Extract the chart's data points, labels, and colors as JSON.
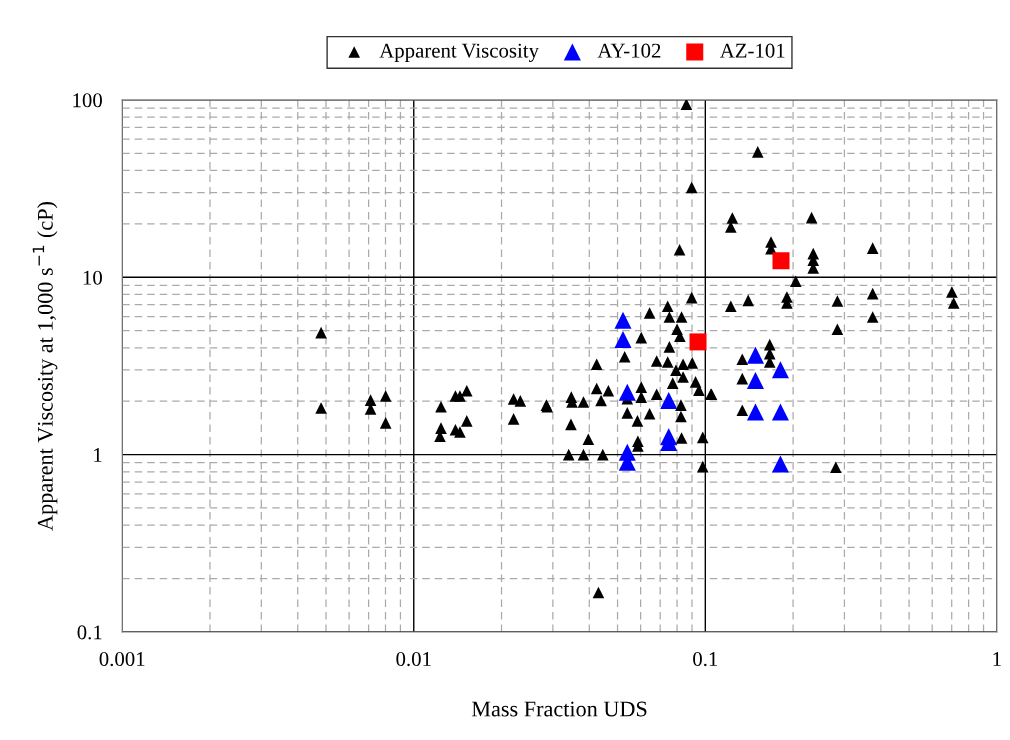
{
  "chart_data": {
    "type": "scatter",
    "xlabel": "Mass Fraction UDS",
    "ylabel": "Apparent Viscosity at 1,000 s$^{−1}$ (cP)",
    "log": "xy",
    "grid": true,
    "legend": "top",
    "xlim": [
      0.001,
      1
    ],
    "xticks": [
      0.001,
      0.01,
      0.1,
      1
    ],
    "ylim": [
      0.1,
      100
    ],
    "yticks": [
      0.1,
      1,
      10,
      100
    ],
    "series": [
      {
        "name": "Apparent Viscosity",
        "color": "#000000",
        "marker": "triangle",
        "x": [
          0.00481,
          0.00481,
          0.00711,
          0.00711,
          0.00801,
          0.00801,
          0.0124,
          0.0124,
          0.0123,
          0.0139,
          0.0144,
          0.0152,
          0.0139,
          0.0144,
          0.0152,
          0.022,
          0.0232,
          0.022,
          0.0287,
          0.0861,
          0.1513,
          0.0898,
          0.1238,
          0.1223,
          0.0816,
          0.0898,
          0.0743,
          0.0753,
          0.0829,
          0.0644,
          0.1223,
          0.1403,
          0.0603,
          0.08,
          0.0818,
          0.0753,
          0.0529,
          0.0424,
          0.0681,
          0.0743,
          0.0793,
          0.0839,
          0.0902,
          0.0839,
          0.0773,
          0.0926,
          0.0951,
          0.1045,
          0.0285,
          0.0347,
          0.0349,
          0.0382,
          0.0424,
          0.0439,
          0.0465,
          0.054,
          0.0603,
          0.0603,
          0.0681,
          0.0825,
          0.0825,
          0.054,
          0.0585,
          0.0644,
          0.0346,
          0.0397,
          0.0587,
          0.0587,
          0.0829,
          0.098,
          0.034,
          0.0382,
          0.0445,
          0.098,
          0.1339,
          0.1339,
          0.1339,
          0.043,
          0.168,
          0.168,
          0.2315,
          0.2345,
          0.2345,
          0.2345,
          0.375,
          0.2043,
          0.1905,
          0.1905,
          0.2838,
          0.375,
          0.375,
          0.2838,
          0.701,
          0.711,
          0.1663,
          0.1663,
          0.1663,
          0.105,
          0.2803
        ],
        "values": [
          4.87,
          1.83,
          2.03,
          1.81,
          2.14,
          1.51,
          1.86,
          1.41,
          1.27,
          2.14,
          2.14,
          2.29,
          1.38,
          1.34,
          1.55,
          2.06,
          2.01,
          1.59,
          1.86,
          94.6,
          50.9,
          32.1,
          21.6,
          19.2,
          14.3,
          7.68,
          6.86,
          5.97,
          5.97,
          6.29,
          6.86,
          7.41,
          4.57,
          5.09,
          4.65,
          4.05,
          3.56,
          3.23,
          3.37,
          3.33,
          2.99,
          3.23,
          3.29,
          2.74,
          2.53,
          2.57,
          2.31,
          2.19,
          1.9,
          2.11,
          1.98,
          1.98,
          2.36,
          2.02,
          2.29,
          2.07,
          2.4,
          2.11,
          2.19,
          1.9,
          1.64,
          1.72,
          1.55,
          1.7,
          1.48,
          1.22,
          1.19,
          1.12,
          1.24,
          1.25,
          1.0,
          1.0,
          1.0,
          0.855,
          3.45,
          2.68,
          1.78,
          0.167,
          15.8,
          14.5,
          21.7,
          13.6,
          12.5,
          11.3,
          14.6,
          9.5,
          7.74,
          7.16,
          7.35,
          8.09,
          5.97,
          5.09,
          8.26,
          7.16,
          4.17,
          3.71,
          3.33,
          2.19,
          0.848
        ]
      },
      {
        "name": "AY-102",
        "color": "#0000ff",
        "marker": "triangle",
        "x": [
          0.0522,
          0.0522,
          0.054,
          0.054,
          0.054,
          0.0749,
          0.0749,
          0.0749,
          0.1486,
          0.181,
          0.1486,
          0.1486,
          0.181,
          0.181
        ],
        "values": [
          5.72,
          4.45,
          2.25,
          1.03,
          0.905,
          2.02,
          1.26,
          1.17,
          3.63,
          3.01,
          2.62,
          1.74,
          1.74,
          0.886
        ]
      },
      {
        "name": "AZ-101",
        "color": "#ff0000",
        "marker": "square",
        "x": [
          0.0944,
          0.1818
        ],
        "values": [
          4.32,
          12.4
        ]
      }
    ]
  }
}
